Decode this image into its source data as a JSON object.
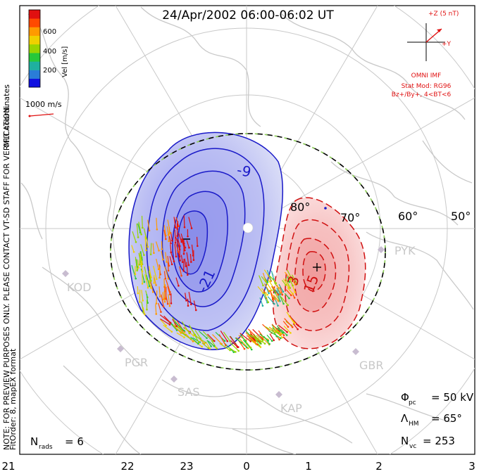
{
  "title": "24/Apr/2002 06:00-06:02 UT",
  "side_note": "NOTE: FOR PREVIEW PURPOSES ONLY. PLEASE CONTACT VT-SD STAFF FOR VERIFICATION.",
  "fit_order": "FitOrder: 8, mapEX format",
  "coordinates": "MLT coordinates",
  "colorbar": {
    "label": "Vel [m/s]",
    "ticks": [
      "600",
      "400",
      "200"
    ],
    "colors": [
      "#1010e0",
      "#2a7dd8",
      "#1fb0a0",
      "#27c83a",
      "#9ad400",
      "#f0d000",
      "#ff9a00",
      "#ff4a00",
      "#e01010"
    ]
  },
  "reference_vector": "1000 m/s",
  "imf": {
    "bz_label": "+Z (5 nT)",
    "by_label": "+Y",
    "source": "OMNI IMF",
    "model_line1": "Stat Mod: RG96",
    "model_line2": "Bz+/By+, 4<BT<6",
    "color": "#e01010"
  },
  "latitudes": [
    "80°",
    "70°",
    "60°",
    "50°"
  ],
  "contours": {
    "negative": "-9",
    "negative2": "-21",
    "positive": "3",
    "positive2": "15"
  },
  "stations": [
    "PYK",
    "KOD",
    "PGR",
    "SAS",
    "KAP",
    "GBR"
  ],
  "stats": {
    "phi_sym": "Φ",
    "phi_sub": "pc",
    "phi_val": "= 50 kV",
    "lam_sym": "Λ",
    "lam_sub": "HM",
    "lam_val": "= 65°",
    "nvc_sym": "N",
    "nvc_sub": "vc",
    "nvc_val": "= 253",
    "nrads_sym": "N",
    "nrads_sub": "rads",
    "nrads_val": "= 6"
  },
  "mlt_ticks": [
    "21",
    "22",
    "23",
    "0",
    "1",
    "2",
    "3"
  ]
}
